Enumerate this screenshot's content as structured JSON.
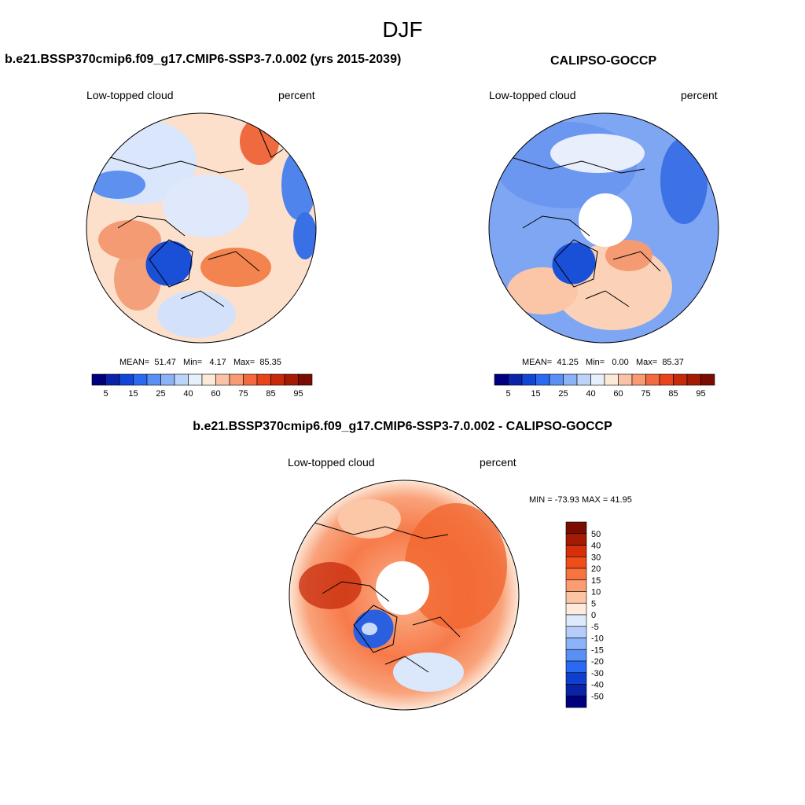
{
  "figure": {
    "title": "DJF"
  },
  "panel_model": {
    "title": "b.e21.BSSP370cmip6.f09_g17.CMIP6-SSP3-7.0.002 (yrs 2015-2039)",
    "left_label": "Low-topped cloud",
    "right_label": "percent",
    "stats": {
      "mean": "51.47",
      "min": "4.17",
      "max": "85.35"
    }
  },
  "panel_obs": {
    "title": "CALIPSO-GOCCP",
    "left_label": "Low-topped cloud",
    "right_label": "percent",
    "stats": {
      "mean": "41.25",
      "min": "0.00",
      "max": "85.37"
    }
  },
  "panel_diff": {
    "title": "b.e21.BSSP370cmip6.f09_g17.CMIP6-SSP3-7.0.002 - CALIPSO-GOCCP",
    "left_label": "Low-topped cloud",
    "right_label": "percent",
    "minmax": "MIN = -73.93 MAX =  41.95"
  },
  "labels": {
    "mean": "MEAN=",
    "min": "Min=",
    "max": "Max="
  },
  "colorbar_abs": {
    "colors": [
      "#00007f",
      "#0a23a8",
      "#1246d6",
      "#2a6af0",
      "#5a8ff5",
      "#8cb2f8",
      "#bcd4fa",
      "#e6f0fd",
      "#fde9d8",
      "#fbc3a5",
      "#f89a74",
      "#f46a40",
      "#e8431a",
      "#c72a0b",
      "#a31a05",
      "#7a0c02"
    ],
    "tick_labels": [
      "5",
      "15",
      "25",
      "40",
      "60",
      "75",
      "85",
      "95"
    ]
  },
  "colorbar_diff": {
    "colors": [
      "#7a0c02",
      "#a31a05",
      "#d62f0b",
      "#ef4e1a",
      "#f8733f",
      "#fa9d72",
      "#fcc4a4",
      "#feeadb",
      "#ddeafb",
      "#b5cdf8",
      "#8cb2f8",
      "#5a8ff5",
      "#2a6af0",
      "#0f3fd0",
      "#0a22a5",
      "#00007f"
    ],
    "tick_labels": [
      "50",
      "40",
      "30",
      "20",
      "15",
      "10",
      "5",
      "0",
      "-5",
      "-10",
      "-15",
      "-20",
      "-30",
      "-40",
      "-50"
    ]
  }
}
